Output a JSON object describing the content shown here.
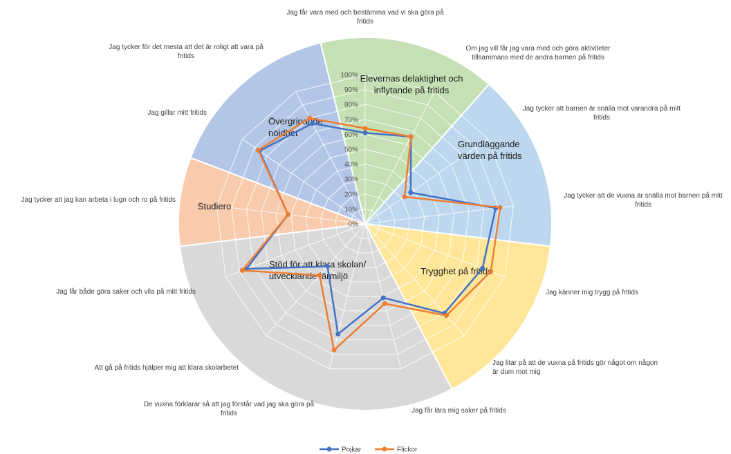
{
  "chart_data": {
    "type": "radar",
    "axes": [
      "Jag får vara med och bestämma vad vi ska göra på fritids",
      "Om jag vill får jag vara med och göra aktiviteter tillsammans med de andra barnen på fritids",
      "Jag tycker att barnen är snälla mot varandra på mitt fritids",
      "Jag tycker att de vuxna är snälla mot barnen på mitt fritids",
      "Jag känner mig trygg på fritids",
      "Jag litar på att de vuxna på fritids gör något om någon är dum mot mig",
      "Jag får lära mig saker på fritids",
      "De vuxna förklarar så att jag förstår vad jag ska göra på fritids",
      "Att gå på fritids hjälper mig att klara skolarbetet",
      "Jag får både göra saker och vila på mitt fritids",
      "Jag tycker att jag kan arbeta i lugn och ro på fritids",
      "Jag gillar mitt fritids",
      "Jag tycker för det mesta att det är roligt att vara på fritids"
    ],
    "ticks": [
      "0%",
      "10%",
      "20%",
      "30%",
      "40%",
      "50%",
      "60%",
      "70%",
      "80%",
      "90%",
      "100%"
    ],
    "range": [
      0,
      100
    ],
    "series": [
      {
        "name": "Pojkar",
        "color": "#4472C4",
        "values": [
          61,
          66,
          37,
          88,
          84,
          80,
          51,
          76,
          38,
          85,
          52,
          86,
          76
        ]
      },
      {
        "name": "Flickor",
        "color": "#ED7D31",
        "values": [
          64,
          66,
          32,
          91,
          90,
          82,
          55,
          87,
          46,
          88,
          52,
          87,
          80
        ]
      }
    ],
    "sectors": [
      {
        "lines": [
          "Elevernas delaktighet och",
          "inflytande på fritids"
        ],
        "color": "#C5E0B4",
        "axes": [
          0,
          1
        ]
      },
      {
        "lines": [
          "Grundläggande",
          "värden på fritids"
        ],
        "color": "#BDD7EE",
        "axes": [
          2,
          3
        ]
      },
      {
        "lines": [
          "Trygghet på fritids"
        ],
        "color": "#FFE699",
        "axes": [
          4,
          5
        ]
      },
      {
        "lines": [
          "Stöd för att klara skolan/",
          "utvecklande lärmiljö"
        ],
        "color": "#D9D9D9",
        "axes": [
          6,
          7,
          8,
          9
        ]
      },
      {
        "lines": [
          "Studiero"
        ],
        "color": "#F8CBAD",
        "axes": [
          10
        ]
      },
      {
        "lines": [
          "Övergripande",
          "nöjdhet"
        ],
        "color": "#B4C6E7",
        "axes": [
          11,
          12
        ]
      }
    ],
    "legend": {
      "position": "bottom"
    }
  }
}
